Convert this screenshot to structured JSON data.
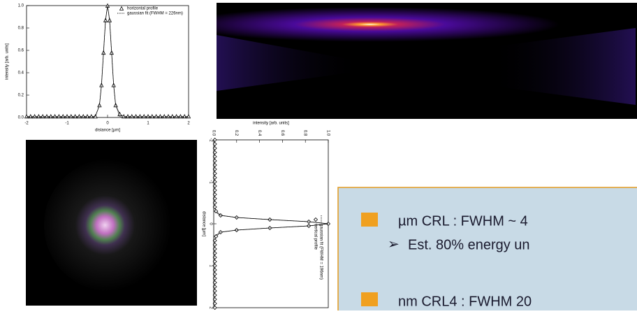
{
  "chart_data": [
    {
      "type": "line",
      "orientation": "horizontal",
      "xlabel": "distance [µm]",
      "ylabel": "intensity [arb. units]",
      "x": [
        -2,
        -1.9,
        -1.8,
        -1.7,
        -1.6,
        -1.5,
        -1.4,
        -1.3,
        -1.2,
        -1.1,
        -1,
        -0.9,
        -0.8,
        -0.7,
        -0.6,
        -0.5,
        -0.4,
        -0.3,
        -0.2,
        -0.15,
        -0.1,
        -0.05,
        0,
        0.05,
        0.1,
        0.15,
        0.2,
        0.3,
        0.4,
        0.5,
        0.6,
        0.7,
        0.8,
        0.9,
        1,
        1.1,
        1.2,
        1.3,
        1.4,
        1.5,
        1.6,
        1.7,
        1.8,
        1.9,
        2
      ],
      "series": [
        {
          "name": "horizontal profile",
          "color": "#000000",
          "marker": "triangle",
          "values": [
            0.01,
            0.01,
            0.01,
            0.01,
            0.01,
            0.01,
            0.01,
            0.01,
            0.01,
            0.01,
            0.01,
            0.01,
            0.01,
            0.01,
            0.01,
            0.01,
            0.01,
            0.01,
            0.11,
            0.29,
            0.58,
            0.87,
            1.0,
            0.87,
            0.58,
            0.29,
            0.11,
            0.03,
            0.01,
            0.01,
            0.01,
            0.01,
            0.01,
            0.01,
            0.01,
            0.01,
            0.01,
            0.01,
            0.01,
            0.01,
            0.01,
            0.01,
            0.01,
            0.01,
            0.01
          ]
        },
        {
          "name": "gaussian fit (FWHM = 226nm)",
          "color": "#000000",
          "dash": "dotted",
          "values": [
            0,
            0,
            0,
            0,
            0,
            0,
            0,
            0,
            0,
            0,
            0,
            0,
            0,
            0,
            0,
            0,
            0,
            0.01,
            0.11,
            0.29,
            0.58,
            0.87,
            1.0,
            0.87,
            0.58,
            0.29,
            0.11,
            0.01,
            0,
            0,
            0,
            0,
            0,
            0,
            0,
            0,
            0,
            0,
            0,
            0,
            0,
            0,
            0,
            0,
            0
          ]
        }
      ],
      "xlim": [
        -2,
        2
      ],
      "xticks": [
        -2,
        -1,
        0,
        1,
        2
      ],
      "ylim": [
        0,
        1
      ],
      "yticks": [
        {
          "value": 0,
          "label": "0.0"
        },
        0.2,
        0.4,
        0.6,
        0.8,
        {
          "value": 1,
          "label": "1.0"
        }
      ]
    },
    {
      "type": "line",
      "orientation": "vertical",
      "xlabel": "distance [µm]",
      "ylabel": "intensity [arb. units]",
      "x": [
        -2,
        -1.9,
        -1.8,
        -1.7,
        -1.6,
        -1.5,
        -1.4,
        -1.3,
        -1.2,
        -1.1,
        -1,
        -0.9,
        -0.8,
        -0.7,
        -0.6,
        -0.5,
        -0.4,
        -0.3,
        -0.2,
        -0.15,
        -0.1,
        -0.05,
        0,
        0.05,
        0.1,
        0.15,
        0.2,
        0.3,
        0.4,
        0.5,
        0.6,
        0.7,
        0.8,
        0.9,
        1,
        1.1,
        1.2,
        1.3,
        1.4,
        1.5,
        1.6,
        1.7,
        1.8,
        1.9,
        2
      ],
      "series": [
        {
          "name": "vertical profile",
          "color": "#000000",
          "marker": "diamond",
          "values": [
            0.01,
            0.01,
            0.01,
            0.01,
            0.01,
            0.01,
            0.01,
            0.01,
            0.01,
            0.01,
            0.01,
            0.01,
            0.01,
            0.01,
            0.01,
            0.01,
            0.01,
            0.02,
            0.06,
            0.2,
            0.49,
            0.83,
            1.0,
            0.83,
            0.49,
            0.2,
            0.06,
            0.02,
            0.01,
            0.01,
            0.01,
            0.01,
            0.01,
            0.01,
            0.01,
            0.01,
            0.01,
            0.01,
            0.01,
            0.01,
            0.01,
            0.01,
            0.01,
            0.01,
            0.01
          ]
        },
        {
          "name": "gaussian fit (FWHM = 196nm)",
          "color": "#000000",
          "dash": "dotted",
          "values": [
            0,
            0,
            0,
            0,
            0,
            0,
            0,
            0,
            0,
            0,
            0,
            0,
            0,
            0,
            0,
            0,
            0,
            0,
            0.06,
            0.2,
            0.49,
            0.83,
            1.0,
            0.83,
            0.49,
            0.2,
            0.06,
            0,
            0,
            0,
            0,
            0,
            0,
            0,
            0,
            0,
            0,
            0,
            0,
            0,
            0,
            0,
            0,
            0,
            0
          ]
        }
      ],
      "xlim": [
        -2,
        2
      ],
      "xticks": [
        -2,
        -1,
        0,
        1,
        2
      ],
      "ylim": [
        0,
        1
      ],
      "yticks": [
        {
          "value": 0,
          "label": "0.0"
        },
        0.2,
        0.4,
        0.6,
        0.8,
        {
          "value": 1,
          "label": "1.0"
        }
      ]
    }
  ],
  "textbox": {
    "lines": [
      "µm CRL : FWHM ~ 4",
      "Est. 80% energy un",
      "nm CRL4 : FWHM 20"
    ]
  }
}
